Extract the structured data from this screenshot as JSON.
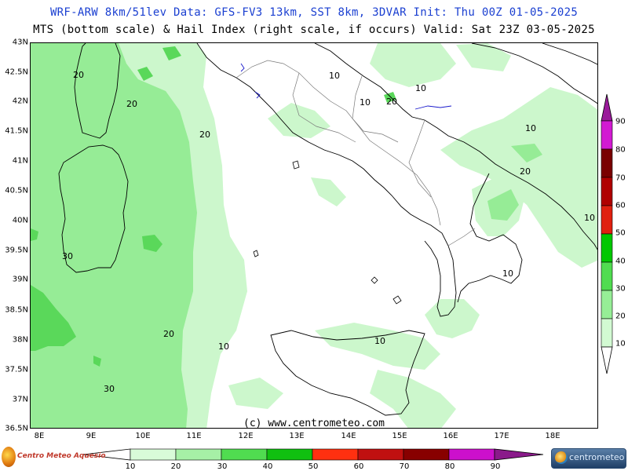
{
  "header": {
    "title_line1": "WRF-ARW 8km/51lev  Data: GFS-FV3 13km, SST 8km, 3DVAR   Init: Thu 00Z 01-05-2025",
    "title_line2": "MTS (bottom scale) & Hail Index (right scale, if occurs) Valid: Sat 23Z 03-05-2025"
  },
  "map": {
    "lat_labels": [
      "43N",
      "42.5N",
      "42N",
      "41.5N",
      "41N",
      "40.5N",
      "40N",
      "39.5N",
      "39N",
      "38.5N",
      "38N",
      "37.5N",
      "37N",
      "36.5N"
    ],
    "lon_labels": [
      "8E",
      "9E",
      "10E",
      "11E",
      "12E",
      "13E",
      "14E",
      "15E",
      "16E",
      "17E",
      "18E"
    ],
    "contour_labels": [
      "20",
      "20",
      "20",
      "30",
      "20",
      "10",
      "30",
      "10",
      "10",
      "20",
      "10",
      "10",
      "20",
      "10",
      "10",
      "10"
    ],
    "copyright": "(c) www.centrometeo.com",
    "colors": {
      "level_20": "#ccf7cc",
      "level_30": "#96ec96",
      "level_40": "#5ad85a",
      "coast": "#000000",
      "border": "#7a7a7a"
    }
  },
  "hail_scale": {
    "labels": [
      "90",
      "80",
      "70",
      "60",
      "50",
      "40",
      "30",
      "20",
      "10"
    ],
    "colors": [
      "#9a1a9a",
      "#d21ad2",
      "#7a0000",
      "#b00000",
      "#e02010",
      "#00c800",
      "#50dc50",
      "#96ee96",
      "#d2fad2"
    ]
  },
  "mts_scale": {
    "labels": [
      "10",
      "20",
      "30",
      "40",
      "50",
      "60",
      "70",
      "80",
      "90"
    ],
    "colors": [
      "#d8fbd8",
      "#a6f0a6",
      "#50dc50",
      "#10c010",
      "#ff3010",
      "#c01010",
      "#880000",
      "#cc10cc",
      "#8a1a8a"
    ]
  },
  "logos": {
    "left": "Centro Meteo Aquesio",
    "right": "centrometeo"
  }
}
